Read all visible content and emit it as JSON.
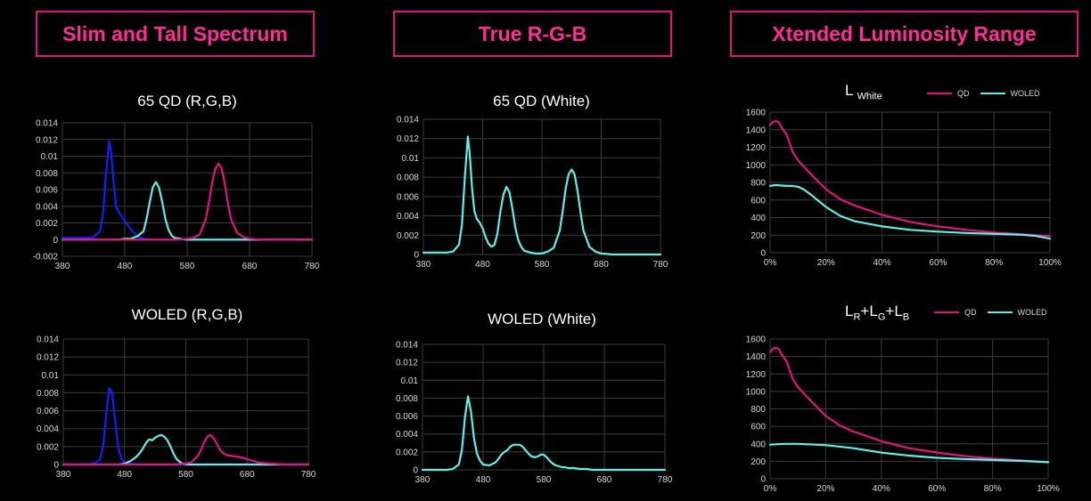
{
  "headers": {
    "col1": "Slim and Tall Spectrum",
    "col2": "True R-G-B",
    "col3": "Xtended Luminosity Range"
  },
  "colors": {
    "accent": "#e0147d",
    "blue": "#1a1aff",
    "cyan": "#5ff0e6",
    "magenta": "#e0147d"
  },
  "lum_legend": {
    "qd": "QD",
    "woled": "WOLED"
  },
  "lum_titles": {
    "white_main": "L",
    "white_sub": "White",
    "rgb_l1": "L",
    "rgb_s1": "R",
    "rgb_plus1": "+",
    "rgb_l2": "L",
    "rgb_s2": "G",
    "rgb_plus2": "+",
    "rgb_l3": "L",
    "rgb_s3": "B"
  },
  "chart_data": [
    {
      "id": "qd_rgb",
      "type": "line",
      "title": "65 QD (R,G,B)",
      "xlim": [
        380,
        780
      ],
      "ylim": [
        -0.002,
        0.014
      ],
      "xticks": [
        380,
        480,
        580,
        680,
        780
      ],
      "yticks": [
        -0.002,
        0,
        0.002,
        0.004,
        0.006,
        0.008,
        0.01,
        0.012,
        0.014
      ],
      "series": [
        {
          "color": "#1a1aff",
          "x": [
            380,
            420,
            430,
            440,
            445,
            450,
            455,
            458,
            462,
            466,
            470,
            475,
            480,
            490,
            500,
            510,
            520,
            540,
            580,
            680,
            780
          ],
          "y": [
            0.0002,
            0.0002,
            0.0003,
            0.001,
            0.003,
            0.008,
            0.0118,
            0.0105,
            0.007,
            0.004,
            0.0033,
            0.0028,
            0.0022,
            0.0012,
            0.0004,
            0.0001,
            0,
            0,
            0,
            0,
            0
          ]
        },
        {
          "color": "#5ff0e6",
          "x": [
            380,
            470,
            480,
            490,
            500,
            510,
            515,
            520,
            525,
            530,
            535,
            540,
            545,
            550,
            555,
            560,
            570,
            580,
            680,
            780
          ],
          "y": [
            0,
            0,
            0.0001,
            0.0001,
            0.0004,
            0.001,
            0.0025,
            0.0045,
            0.0063,
            0.0069,
            0.0062,
            0.0045,
            0.0025,
            0.0012,
            0.0005,
            0.0002,
            0.0001,
            0,
            0,
            0
          ]
        },
        {
          "color": "#e0147d",
          "x": [
            380,
            560,
            580,
            590,
            600,
            610,
            615,
            620,
            625,
            630,
            635,
            640,
            645,
            650,
            660,
            670,
            680,
            700,
            780
          ],
          "y": [
            0,
            0,
            0.0001,
            0.0002,
            0.0006,
            0.0025,
            0.0045,
            0.0068,
            0.0085,
            0.0091,
            0.0086,
            0.0068,
            0.0045,
            0.0025,
            0.0008,
            0.0003,
            0.0001,
            0,
            0
          ]
        }
      ]
    },
    {
      "id": "qd_white",
      "type": "line",
      "title": "65 QD (White)",
      "xlim": [
        380,
        780
      ],
      "ylim": [
        0,
        0.014
      ],
      "xticks": [
        380,
        480,
        580,
        680,
        780
      ],
      "yticks": [
        0,
        0.002,
        0.004,
        0.006,
        0.008,
        0.01,
        0.012,
        0.014
      ],
      "series": [
        {
          "color": "#5ff0e6",
          "x": [
            380,
            420,
            430,
            440,
            445,
            450,
            455,
            458,
            462,
            466,
            470,
            475,
            480,
            485,
            490,
            495,
            500,
            505,
            510,
            515,
            520,
            525,
            530,
            535,
            540,
            545,
            550,
            560,
            570,
            580,
            590,
            600,
            610,
            615,
            620,
            625,
            630,
            635,
            640,
            645,
            650,
            660,
            670,
            680,
            700,
            780
          ],
          "y": [
            0.0002,
            0.0002,
            0.0003,
            0.001,
            0.003,
            0.008,
            0.0122,
            0.0105,
            0.007,
            0.0045,
            0.0037,
            0.0033,
            0.0027,
            0.0018,
            0.0011,
            0.0008,
            0.001,
            0.0022,
            0.0045,
            0.0062,
            0.007,
            0.0065,
            0.0048,
            0.0028,
            0.0015,
            0.0008,
            0.0004,
            0.0002,
            0.0001,
            0.0001,
            0.0003,
            0.0007,
            0.0025,
            0.0045,
            0.0068,
            0.0083,
            0.0088,
            0.0083,
            0.0066,
            0.0044,
            0.0025,
            0.0008,
            0.0003,
            0.0001,
            0,
            0
          ]
        }
      ]
    },
    {
      "id": "woled_rgb",
      "type": "line",
      "title": "WOLED (R,G,B)",
      "xlim": [
        380,
        780
      ],
      "ylim": [
        0,
        0.014
      ],
      "xticks": [
        380,
        480,
        580,
        680,
        780
      ],
      "yticks": [
        0,
        0.002,
        0.004,
        0.006,
        0.008,
        0.01,
        0.012,
        0.014
      ],
      "series": [
        {
          "color": "#1a1aff",
          "x": [
            380,
            420,
            430,
            440,
            445,
            450,
            455,
            460,
            465,
            470,
            475,
            480,
            490,
            500,
            520,
            580,
            780
          ],
          "y": [
            0,
            0,
            0.0001,
            0.0006,
            0.002,
            0.0055,
            0.0085,
            0.008,
            0.0045,
            0.0018,
            0.0006,
            0.0002,
            0.0001,
            0,
            0,
            0,
            0
          ]
        },
        {
          "color": "#5ff0e6",
          "x": [
            380,
            470,
            480,
            490,
            500,
            505,
            510,
            515,
            520,
            525,
            530,
            535,
            540,
            545,
            550,
            555,
            560,
            565,
            570,
            575,
            580,
            590,
            600,
            780
          ],
          "y": [
            0,
            0,
            0.0001,
            0.0004,
            0.0009,
            0.0013,
            0.0018,
            0.0024,
            0.0028,
            0.0027,
            0.003,
            0.0032,
            0.0033,
            0.0031,
            0.0027,
            0.002,
            0.0012,
            0.0006,
            0.0003,
            0.0001,
            0,
            0,
            0,
            0
          ]
        },
        {
          "color": "#e0147d",
          "x": [
            380,
            560,
            580,
            590,
            600,
            605,
            610,
            615,
            620,
            625,
            630,
            635,
            640,
            645,
            650,
            660,
            670,
            680,
            690,
            700,
            720,
            740,
            780
          ],
          "y": [
            0,
            0,
            0.0001,
            0.0003,
            0.001,
            0.0017,
            0.0025,
            0.0031,
            0.0033,
            0.003,
            0.0024,
            0.0017,
            0.0013,
            0.0011,
            0.001,
            0.0009,
            0.0008,
            0.0006,
            0.0004,
            0.0002,
            0.0001,
            0,
            0
          ]
        }
      ]
    },
    {
      "id": "woled_white",
      "type": "line",
      "title": "WOLED (White)",
      "xlim": [
        380,
        780
      ],
      "ylim": [
        0,
        0.014
      ],
      "xticks": [
        380,
        480,
        580,
        680,
        780
      ],
      "yticks": [
        0,
        0.002,
        0.004,
        0.006,
        0.008,
        0.01,
        0.012,
        0.014
      ],
      "series": [
        {
          "color": "#5ff0e6",
          "x": [
            380,
            420,
            430,
            440,
            445,
            450,
            455,
            460,
            465,
            470,
            475,
            480,
            490,
            500,
            505,
            510,
            515,
            520,
            525,
            530,
            535,
            540,
            545,
            550,
            555,
            560,
            565,
            570,
            575,
            580,
            585,
            590,
            595,
            600,
            605,
            610,
            615,
            620,
            625,
            630,
            640,
            650,
            660,
            670,
            680,
            700,
            720,
            780
          ],
          "y": [
            0,
            0,
            0.0001,
            0.0006,
            0.0022,
            0.0058,
            0.0082,
            0.0065,
            0.0035,
            0.0018,
            0.001,
            0.0006,
            0.0005,
            0.0008,
            0.0012,
            0.0017,
            0.002,
            0.0022,
            0.0026,
            0.0028,
            0.0028,
            0.0028,
            0.0026,
            0.0022,
            0.0018,
            0.0015,
            0.0014,
            0.0015,
            0.0017,
            0.0017,
            0.0014,
            0.001,
            0.0007,
            0.0005,
            0.0004,
            0.0003,
            0.0003,
            0.0002,
            0.0002,
            0.0002,
            0.0001,
            0.0001,
            0,
            0,
            0,
            0,
            0,
            0
          ]
        }
      ]
    },
    {
      "id": "lum_white",
      "type": "line",
      "xlim": [
        0,
        100
      ],
      "ylim": [
        0,
        1600
      ],
      "xticks": [
        0,
        20,
        40,
        60,
        80,
        100
      ],
      "xtick_suffix": "%",
      "yticks": [
        0,
        200,
        400,
        600,
        800,
        1000,
        1200,
        1400,
        1600
      ],
      "series": [
        {
          "name": "QD",
          "color": "#e0147d",
          "x": [
            0,
            1,
            2,
            3,
            4,
            6,
            8,
            10,
            12,
            15,
            20,
            25,
            30,
            40,
            50,
            60,
            70,
            80,
            90,
            100
          ],
          "y": [
            1450,
            1490,
            1500,
            1490,
            1430,
            1340,
            1150,
            1050,
            980,
            880,
            720,
            610,
            540,
            430,
            350,
            300,
            260,
            230,
            210,
            190
          ]
        },
        {
          "name": "WOLED",
          "color": "#5ff0e6",
          "x": [
            0,
            2,
            4,
            6,
            8,
            10,
            12,
            15,
            20,
            25,
            30,
            40,
            50,
            60,
            70,
            80,
            90,
            95,
            100
          ],
          "y": [
            760,
            770,
            765,
            760,
            760,
            750,
            720,
            650,
            520,
            420,
            360,
            300,
            260,
            240,
            225,
            215,
            205,
            190,
            160
          ]
        }
      ]
    },
    {
      "id": "lum_rgb",
      "type": "line",
      "xlim": [
        0,
        100
      ],
      "ylim": [
        0,
        1600
      ],
      "xticks": [
        0,
        20,
        40,
        60,
        80,
        100
      ],
      "xtick_suffix": "%",
      "yticks": [
        0,
        200,
        400,
        600,
        800,
        1000,
        1200,
        1400,
        1600
      ],
      "series": [
        {
          "name": "QD",
          "color": "#e0147d",
          "x": [
            0,
            1,
            2,
            3,
            4,
            6,
            8,
            10,
            12,
            15,
            20,
            25,
            30,
            40,
            50,
            60,
            70,
            80,
            90,
            100
          ],
          "y": [
            1450,
            1490,
            1500,
            1490,
            1430,
            1340,
            1150,
            1050,
            980,
            880,
            720,
            610,
            540,
            430,
            350,
            300,
            260,
            230,
            210,
            190
          ]
        },
        {
          "name": "WOLED",
          "color": "#5ff0e6",
          "x": [
            0,
            5,
            10,
            20,
            30,
            40,
            50,
            60,
            70,
            80,
            90,
            100
          ],
          "y": [
            390,
            400,
            400,
            385,
            350,
            300,
            265,
            240,
            225,
            215,
            205,
            190
          ]
        }
      ]
    }
  ]
}
